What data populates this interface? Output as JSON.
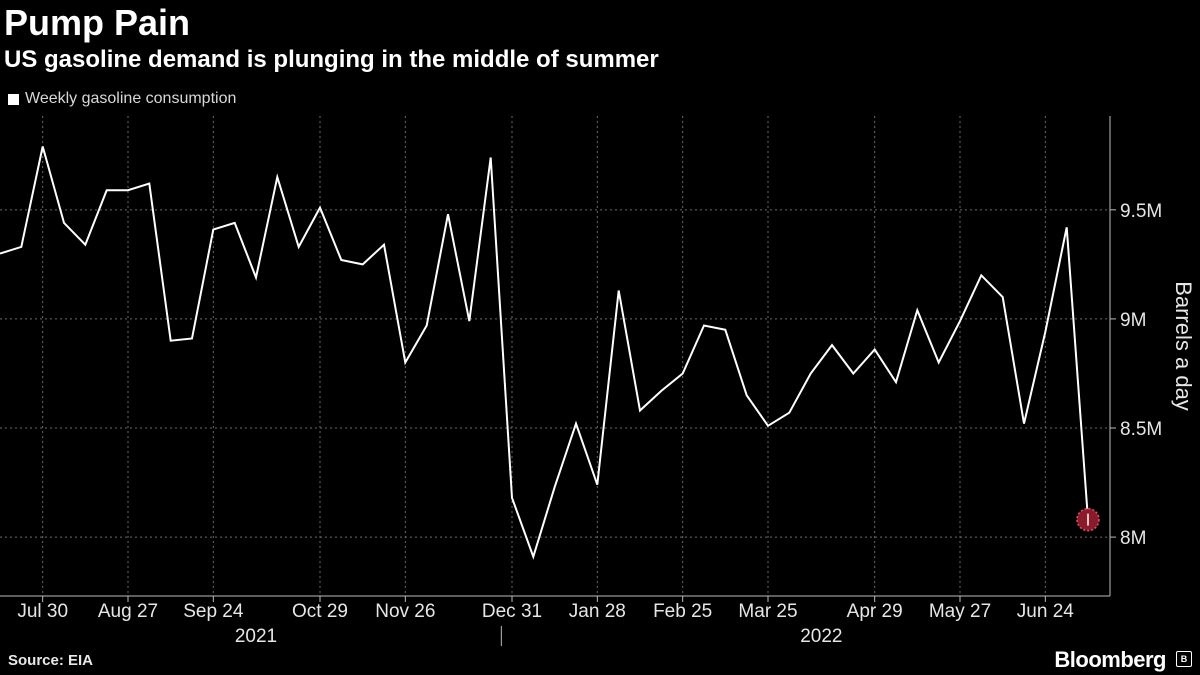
{
  "header": {
    "title": "Pump Pain",
    "subtitle": "US gasoline demand is plunging in the middle of summer"
  },
  "legend": {
    "label": "Weekly gasoline consumption"
  },
  "footer": {
    "source": "Source: EIA",
    "brand": "Bloomberg"
  },
  "colors": {
    "background": "#000000",
    "line": "#ffffff",
    "grid": "#6a6a6a",
    "highlight": "#8b1a2b"
  },
  "chart_data": {
    "type": "line",
    "title": "Pump Pain",
    "subtitle": "US gasoline demand is plunging in the middle of summer",
    "ylabel": "Barrels a day",
    "xlabel": "",
    "ylim": [
      7.73,
      9.93
    ],
    "y_ticks": [
      8.0,
      8.5,
      9.0,
      9.5
    ],
    "y_tick_labels": [
      "8M",
      "8.5M",
      "9M",
      "9.5M"
    ],
    "x_ticks": [
      "Jul 30",
      "Aug 27",
      "Sep 24",
      "Oct 29",
      "Nov 26",
      "Dec 31",
      "Jan 28",
      "Feb 25",
      "Mar 25",
      "Apr 29",
      "May 27",
      "Jun 24"
    ],
    "x_tick_week_index": [
      2,
      6,
      10,
      15,
      19,
      24,
      28,
      32,
      36,
      41,
      45,
      49
    ],
    "years": [
      {
        "label": "2021",
        "center_week": 12
      },
      {
        "label": "2022",
        "center_week": 38.5
      }
    ],
    "grid": true,
    "series": [
      {
        "name": "Weekly gasoline consumption",
        "values": [
          9.3,
          9.33,
          9.79,
          9.44,
          9.34,
          9.59,
          9.59,
          9.62,
          8.9,
          8.91,
          9.41,
          9.44,
          9.19,
          9.65,
          9.33,
          9.51,
          9.27,
          9.25,
          9.34,
          8.8,
          8.97,
          9.48,
          8.99,
          9.74,
          8.18,
          7.91,
          8.23,
          8.52,
          8.24,
          9.13,
          8.58,
          8.67,
          8.75,
          8.97,
          8.95,
          8.65,
          8.51,
          8.57,
          8.75,
          8.88,
          8.75,
          8.86,
          8.71,
          9.04,
          8.8,
          8.99,
          9.2,
          9.1,
          8.52,
          8.94,
          9.42,
          8.08
        ]
      }
    ],
    "highlight_last_point": true
  }
}
